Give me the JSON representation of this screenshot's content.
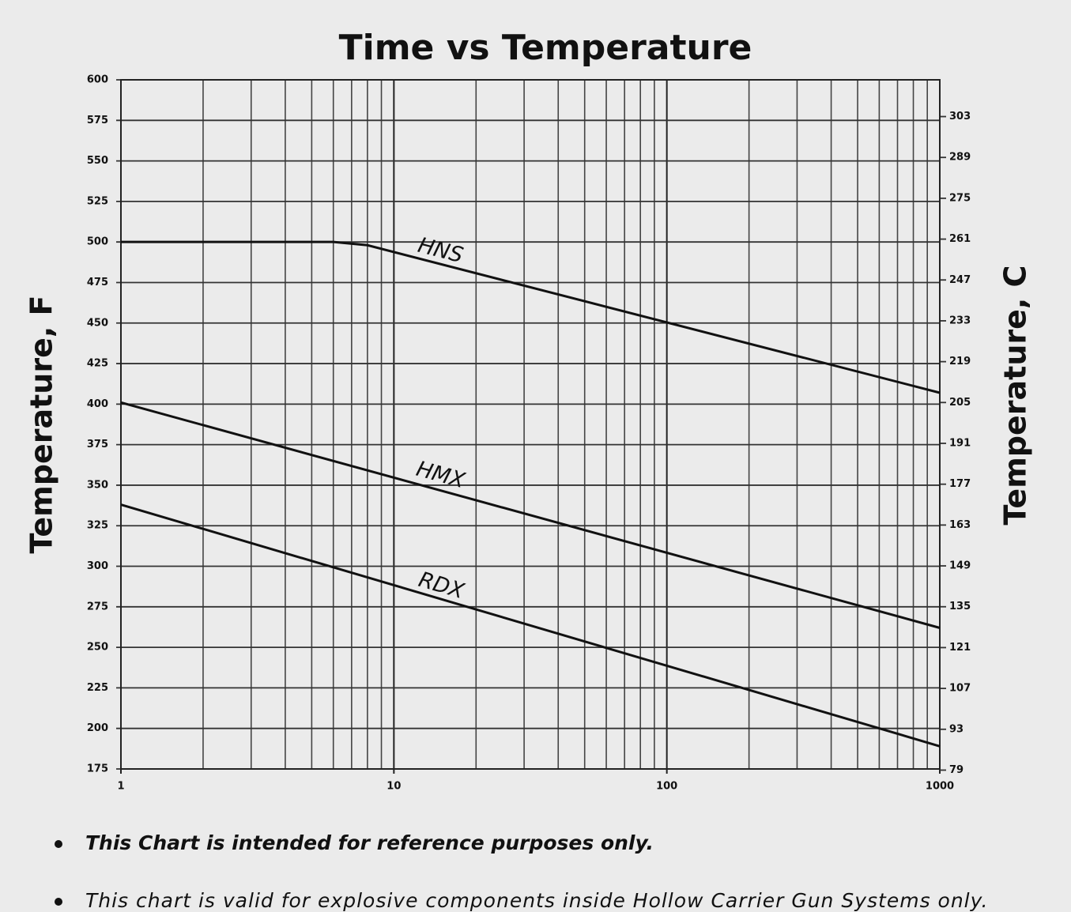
{
  "chart_data": {
    "type": "line",
    "title": "Time vs Temperature",
    "y_label": "Temperature, F",
    "y2_label": "Temperature, C",
    "xscale": "log",
    "xlim": [
      1,
      1000
    ],
    "xticks": [
      1,
      10,
      100,
      1000
    ],
    "x_minor_ticks": [
      2,
      3,
      4,
      5,
      6,
      7,
      8,
      9,
      20,
      30,
      40,
      50,
      60,
      70,
      80,
      90,
      200,
      300,
      400,
      500,
      600,
      700,
      800,
      900
    ],
    "ylim": [
      175,
      600
    ],
    "yticks": [
      175,
      200,
      225,
      250,
      275,
      300,
      325,
      350,
      375,
      400,
      425,
      450,
      475,
      500,
      525,
      550,
      575,
      600
    ],
    "y2lim": [
      79.4,
      315.6
    ],
    "y2ticks": [
      79,
      93,
      107,
      121,
      135,
      149,
      163,
      177,
      191,
      205,
      219,
      233,
      247,
      261,
      275,
      289,
      303
    ],
    "grid": true,
    "series": [
      {
        "name": "HNS",
        "color": "#111111",
        "x": [
          1,
          6,
          8,
          1000
        ],
        "values": [
          500,
          500,
          498,
          407
        ]
      },
      {
        "name": "HMX",
        "color": "#111111",
        "x": [
          1,
          1000
        ],
        "values": [
          401,
          262
        ]
      },
      {
        "name": "RDX",
        "color": "#111111",
        "x": [
          1,
          1000
        ],
        "values": [
          338,
          189
        ]
      }
    ],
    "notes": [
      "This Chart is intended for reference purposes only.",
      "This chart is valid for explosive components inside Hollow Carrier Gun Systems only."
    ]
  }
}
